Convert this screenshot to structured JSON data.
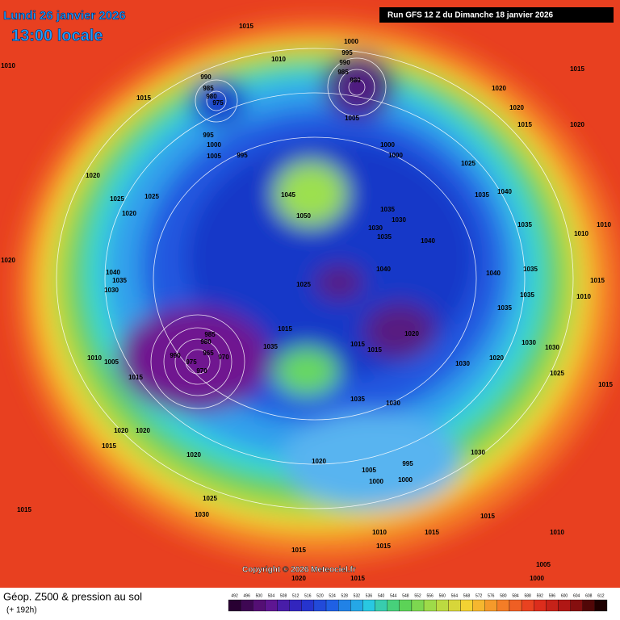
{
  "header": {
    "date": "Lundi 26 janvier 2026",
    "time": "13:00 locale",
    "run": "Run GFS 12 Z du Dimanche 18 janvier 2026"
  },
  "copyright": "Copyright © 2026 Meteociel.fr",
  "footer": {
    "title": "Géop. Z500 & pression au sol",
    "lead": "(+ 192h)"
  },
  "legend": {
    "levels": [
      492,
      496,
      500,
      504,
      508,
      512,
      516,
      520,
      524,
      528,
      532,
      536,
      540,
      544,
      548,
      552,
      556,
      560,
      564,
      568,
      572,
      576,
      580,
      584,
      588,
      592,
      596,
      600,
      604,
      608,
      612
    ]
  },
  "isobar_labels": [
    1015,
    1010,
    1015,
    990,
    985,
    980,
    975,
    995,
    1000,
    1005,
    995,
    1020,
    1025,
    1025,
    1020,
    1020,
    1040,
    1035,
    1030,
    1010,
    1005,
    1015,
    1020,
    1020,
    1015,
    1020,
    1025,
    1030,
    1015,
    1000,
    995,
    990,
    985,
    980,
    1005,
    1000,
    1000,
    1020,
    1020,
    1015,
    1015,
    1020,
    1025,
    1035,
    1040,
    1045,
    1050,
    1035,
    1030,
    1030,
    1035,
    1040,
    1040,
    1025,
    1040,
    1035,
    1035,
    1035,
    1035,
    1010,
    1010,
    1015,
    1010,
    1020,
    1015,
    1015,
    1030,
    1020,
    1030,
    1030,
    1025,
    1015,
    1030,
    1035,
    1015,
    985,
    980,
    990,
    975,
    965,
    970,
    970,
    1035,
    1020,
    1005,
    1000,
    1000,
    995,
    1030,
    1015,
    1010,
    1015,
    1010,
    1015,
    1015,
    1020,
    1015,
    1005,
    1000,
    1010
  ]
}
